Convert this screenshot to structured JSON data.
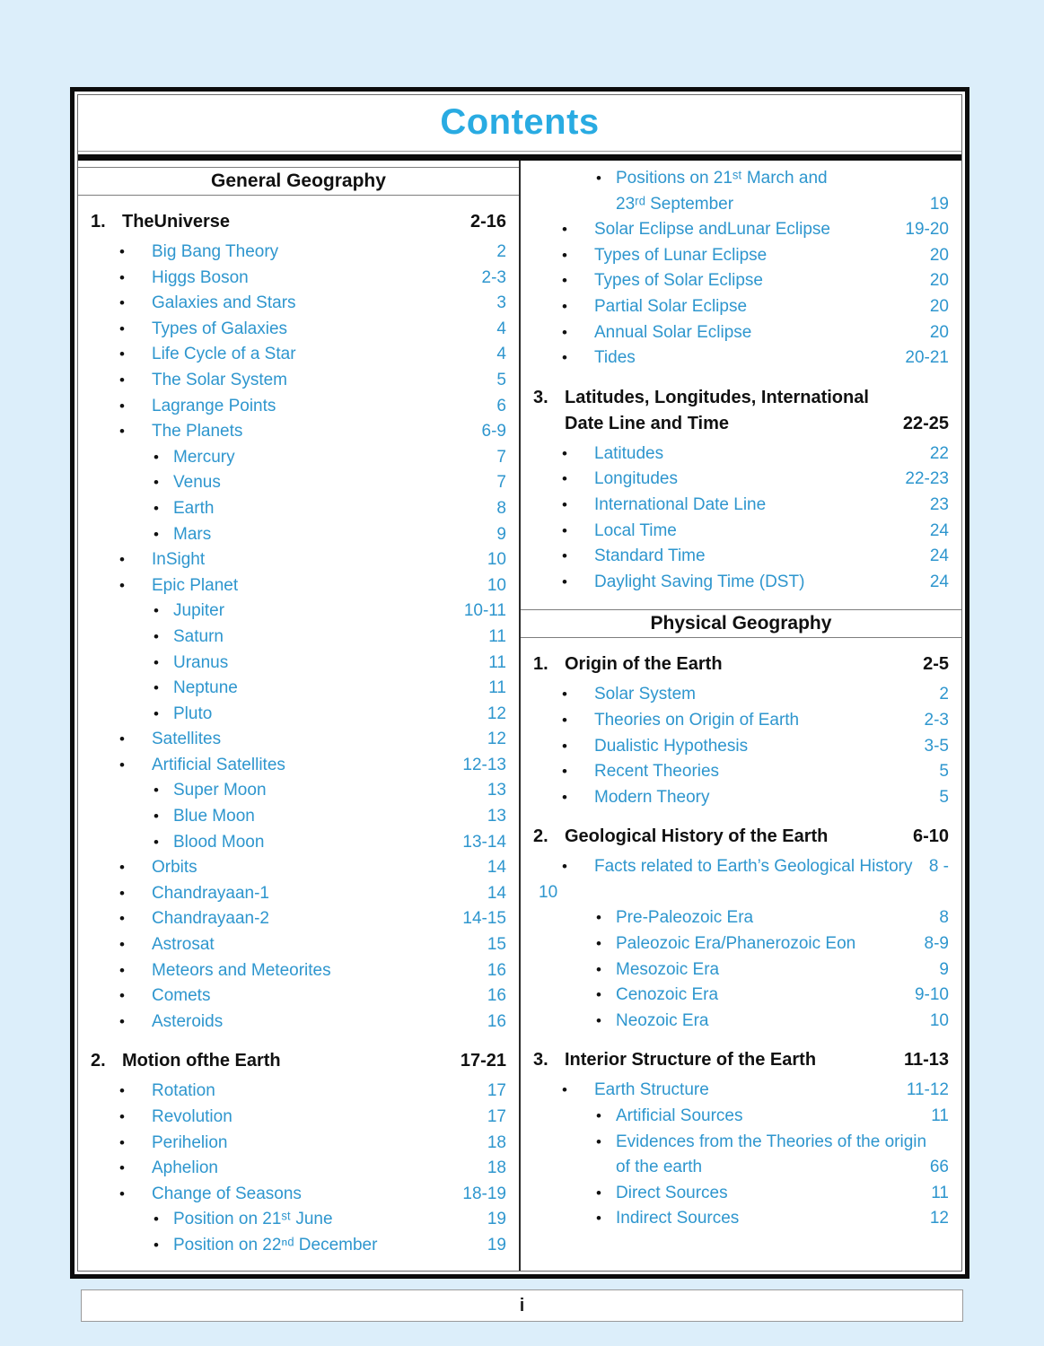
{
  "title": "Contents",
  "glyphs": {
    "bullet": "•"
  },
  "colors": {
    "accent_blue": "#29abe2",
    "item_blue": "#2e96ce"
  },
  "footer": {
    "page_label": "i"
  },
  "left_column": {
    "entries": [
      {
        "t": "band",
        "label": "General Geography"
      },
      {
        "t": "sec",
        "num": "1.",
        "label": "TheUniverse",
        "pages": "2-16"
      },
      {
        "t": "i1",
        "label": "Big Bang Theory",
        "pages": "2"
      },
      {
        "t": "i1",
        "label": "Higgs Boson",
        "pages": "2-3"
      },
      {
        "t": "i1",
        "label": "Galaxies and Stars",
        "pages": "3"
      },
      {
        "t": "i1",
        "label": "Types of Galaxies",
        "pages": "4"
      },
      {
        "t": "i1",
        "label": "Life Cycle of a Star",
        "pages": "4"
      },
      {
        "t": "i1",
        "label": "The Solar System",
        "pages": "5"
      },
      {
        "t": "i1",
        "label": "Lagrange Points",
        "pages": "6"
      },
      {
        "t": "i1",
        "label": "The Planets",
        "pages": "6-9"
      },
      {
        "t": "i2",
        "label": "Mercury",
        "pages": "7"
      },
      {
        "t": "i2",
        "label": "Venus",
        "pages": "7"
      },
      {
        "t": "i2",
        "label": "Earth",
        "pages": "8"
      },
      {
        "t": "i2",
        "label": "Mars",
        "pages": "9"
      },
      {
        "t": "i1",
        "label": "InSight",
        "pages": "10"
      },
      {
        "t": "i1",
        "label": "Epic Planet",
        "pages": "10"
      },
      {
        "t": "i2",
        "label": "Jupiter",
        "pages": "10-11"
      },
      {
        "t": "i2",
        "label": "Saturn",
        "pages": "11"
      },
      {
        "t": "i2",
        "label": "Uranus",
        "pages": "11"
      },
      {
        "t": "i2",
        "label": "Neptune",
        "pages": "11"
      },
      {
        "t": "i2",
        "label": "Pluto",
        "pages": "12"
      },
      {
        "t": "i1",
        "label": "Satellites",
        "pages": "12"
      },
      {
        "t": "i1",
        "label": "Artificial Satellites",
        "pages": "12-13"
      },
      {
        "t": "i2",
        "label": "Super Moon",
        "pages": "13"
      },
      {
        "t": "i2",
        "label": "Blue Moon",
        "pages": "13"
      },
      {
        "t": "i2",
        "label": "Blood Moon",
        "pages": "13-14"
      },
      {
        "t": "i1",
        "label": "Orbits",
        "pages": "14"
      },
      {
        "t": "i1",
        "label": "Chandrayaan-1",
        "pages": "14"
      },
      {
        "t": "i1",
        "label": "Chandrayaan-2",
        "pages": "14-15"
      },
      {
        "t": "i1",
        "label": "Astrosat",
        "pages": "15"
      },
      {
        "t": "i1",
        "label": "Meteors and Meteorites",
        "pages": "16"
      },
      {
        "t": "i1",
        "label": "Comets",
        "pages": "16"
      },
      {
        "t": "i1",
        "label": "Asteroids",
        "pages": "16"
      },
      {
        "t": "sec",
        "num": "2.",
        "label": "Motion ofthe Earth",
        "pages": "17-21"
      },
      {
        "t": "i1",
        "label": "Rotation",
        "pages": "17"
      },
      {
        "t": "i1",
        "label": "Revolution",
        "pages": "17"
      },
      {
        "t": "i1",
        "label": "Perihelion",
        "pages": "18"
      },
      {
        "t": "i1",
        "label": "Aphelion",
        "pages": "18"
      },
      {
        "t": "i1",
        "label": "Change of Seasons",
        "pages": "18-19"
      },
      {
        "t": "i2",
        "label": "Position on 21ˢᵗ June",
        "pages": "19"
      },
      {
        "t": "i2",
        "label": "Position on 22ⁿᵈ December",
        "pages": "19"
      }
    ]
  },
  "right_column": {
    "entries": [
      {
        "t": "i2w2",
        "line1": "Positions on 21ˢᵗ March and",
        "line2": "23ʳᵈ September",
        "pages": "19"
      },
      {
        "t": "i1",
        "label": "Solar Eclipse andLunar Eclipse",
        "pages": "19-20"
      },
      {
        "t": "i1",
        "label": "Types of Lunar Eclipse",
        "pages": "20"
      },
      {
        "t": "i1",
        "label": "Types of Solar Eclipse",
        "pages": "20"
      },
      {
        "t": "i1",
        "label": "Partial Solar Eclipse",
        "pages": "20"
      },
      {
        "t": "i1",
        "label": "Annual Solar Eclipse",
        "pages": "20"
      },
      {
        "t": "i1",
        "label": "Tides",
        "pages": "20-21"
      },
      {
        "t": "sec2",
        "num": "3.",
        "line1": "Latitudes, Longitudes, International",
        "line2": "Date Line and Time",
        "pages": "22-25"
      },
      {
        "t": "i1",
        "label": "Latitudes",
        "pages": "22"
      },
      {
        "t": "i1",
        "label": "Longitudes",
        "pages": "22-23"
      },
      {
        "t": "i1",
        "label": "International Date Line",
        "pages": "23"
      },
      {
        "t": "i1",
        "label": "Local Time",
        "pages": "24"
      },
      {
        "t": "i1",
        "label": "Standard Time",
        "pages": "24"
      },
      {
        "t": "i1",
        "label": "Daylight Saving Time (DST)",
        "pages": "24"
      },
      {
        "t": "band",
        "label": "Physical Geography"
      },
      {
        "t": "sec",
        "num": "1.",
        "label": "Origin of the Earth",
        "pages": "2-5"
      },
      {
        "t": "i1",
        "label": "Solar System",
        "pages": "2"
      },
      {
        "t": "i1",
        "label": "Theories on Origin of Earth",
        "pages": "2-3"
      },
      {
        "t": "i1",
        "label": "Dualistic Hypothesis",
        "pages": "3-5"
      },
      {
        "t": "i1",
        "label": "Recent Theories",
        "pages": "5"
      },
      {
        "t": "i1",
        "label": "Modern Theory",
        "pages": "5"
      },
      {
        "t": "sec",
        "num": "2.",
        "label": "Geological History of the Earth",
        "pages": "6-10"
      },
      {
        "t": "wrap",
        "line1": "Facts related to Earth’s Geological History",
        "pages1": "8 -",
        "line2": "10"
      },
      {
        "t": "i2",
        "label": "Pre-Paleozoic Era",
        "pages": "8"
      },
      {
        "t": "i2",
        "label": "Paleozoic Era/Phanerozoic Eon",
        "pages": "8-9"
      },
      {
        "t": "i2",
        "label": "Mesozoic Era",
        "pages": "9"
      },
      {
        "t": "i2",
        "label": "Cenozoic Era",
        "pages": "9-10"
      },
      {
        "t": "i2",
        "label": "Neozoic Era",
        "pages": "10"
      },
      {
        "t": "sec",
        "num": "3.",
        "label": "Interior Structure of the Earth",
        "pages": "11-13"
      },
      {
        "t": "i1",
        "label": "Earth Structure",
        "pages": "11-12"
      },
      {
        "t": "i2",
        "label": "Artificial Sources",
        "pages": "11"
      },
      {
        "t": "i2w2",
        "line1": "Evidences from the Theories of the origin",
        "line2": "of the earth",
        "pages": "66"
      },
      {
        "t": "i2",
        "label": "Direct Sources",
        "pages": "11"
      },
      {
        "t": "i2",
        "label": "Indirect Sources",
        "pages": "12"
      }
    ]
  }
}
